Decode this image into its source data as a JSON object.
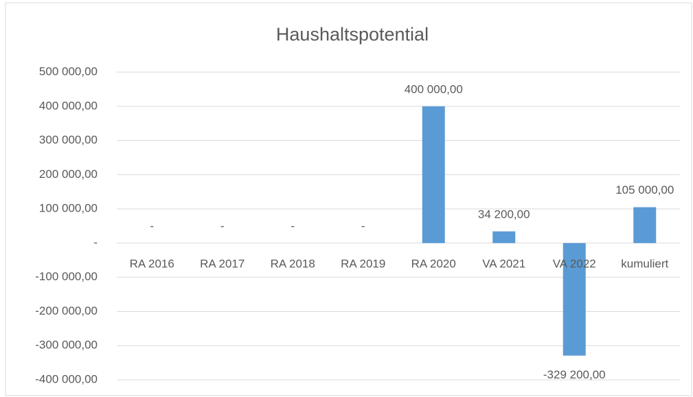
{
  "chart_data": {
    "type": "bar",
    "title": "Haushaltspotential",
    "categories": [
      "RA 2016",
      "RA 2017",
      "RA 2018",
      "RA 2019",
      "RA 2020",
      "VA 2021",
      "VA 2022",
      "kumuliert"
    ],
    "values": [
      0,
      0,
      0,
      0,
      400000,
      34200,
      -329200,
      105000
    ],
    "value_labels": [
      "-",
      "-",
      "-",
      "-",
      "400 000,00",
      "34 200,00",
      "-329 200,00",
      "105 000,00"
    ],
    "color": "#5b9bd5",
    "ylim": [
      -400000,
      500000
    ],
    "yticks": [
      {
        "value": -400000,
        "label": "-400 000,00"
      },
      {
        "value": -300000,
        "label": "-300 000,00"
      },
      {
        "value": -200000,
        "label": "-200 000,00"
      },
      {
        "value": -100000,
        "label": "-100 000,00"
      },
      {
        "value": 0,
        "label": "-"
      },
      {
        "value": 100000,
        "label": "100 000,00"
      },
      {
        "value": 200000,
        "label": "200 000,00"
      },
      {
        "value": 300000,
        "label": "300 000,00"
      },
      {
        "value": 400000,
        "label": "400 000,00"
      },
      {
        "value": 500000,
        "label": "500 000,00"
      }
    ],
    "grid": true
  }
}
